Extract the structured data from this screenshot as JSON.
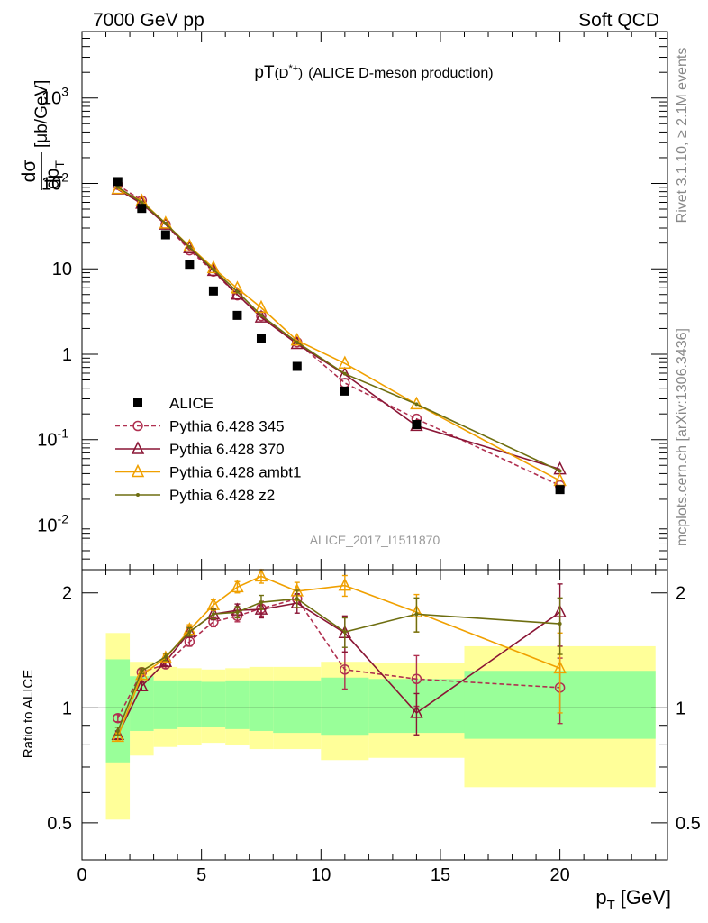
{
  "header": {
    "left": "7000 GeV pp",
    "right": "Soft QCD"
  },
  "side": {
    "rivet": "Rivet 3.1.10, ≥ 2.1M events",
    "site": "mcplots.cern.ch [arXiv:1306.3436]"
  },
  "chart_data": {
    "type": "line",
    "title": "pT(D*+) (ALICE D-meson production)",
    "title_parts": {
      "main": "pT",
      "paren": "(D",
      "sup": "*+",
      "close": ")",
      "rest": "(ALICE D-meson production)"
    },
    "analysis_id": "ALICE_2017_I1511870",
    "ylabel": "dσ/dp_T [μb/GeV]",
    "ylabel_parts": {
      "num": "dσ",
      "den": "dp",
      "sub": "T",
      "unit": "[μb/GeV]"
    },
    "xlabel": "p_T [GeV]",
    "xlabel_parts": {
      "main": "p",
      "sub": "T",
      "unit": "[GeV]"
    },
    "ratio_ylabel": "Ratio to ALICE",
    "x_ticks": [
      "0",
      "5",
      "10",
      "15",
      "20"
    ],
    "y_ticks_main": {
      "exp": [
        "10",
        "10",
        "10",
        "10"
      ],
      "exp_pow": [
        "3",
        "2",
        "-1",
        "-2"
      ],
      "plain": [
        "10",
        "1"
      ]
    },
    "y_ticks_ratio": [
      "0.5",
      "1",
      "2"
    ],
    "xlim": [
      0,
      24.5
    ],
    "ylim_main": [
      0.003,
      6000
    ],
    "ylim_ratio": [
      0.4,
      2.3
    ],
    "y_scale": "log",
    "legend_position": "bottom-left",
    "data": {
      "name": "ALICE",
      "color": "#000000",
      "x": [
        1.5,
        2.5,
        3.5,
        4.5,
        5.5,
        6.5,
        7.5,
        9.0,
        11.0,
        14.0,
        20.0
      ],
      "y": [
        105,
        51,
        25,
        11.3,
        5.5,
        2.85,
        1.52,
        0.72,
        0.37,
        0.15,
        0.026
      ],
      "bins": [
        [
          1,
          2
        ],
        [
          2,
          3
        ],
        [
          3,
          4
        ],
        [
          4,
          5
        ],
        [
          5,
          6
        ],
        [
          6,
          7
        ],
        [
          7,
          8
        ],
        [
          8,
          10
        ],
        [
          10,
          12
        ],
        [
          12,
          16
        ],
        [
          16,
          24
        ]
      ],
      "band_stat": [
        [
          0.72,
          1.34
        ],
        [
          0.87,
          1.21
        ],
        [
          0.88,
          1.18
        ],
        [
          0.89,
          1.18
        ],
        [
          0.89,
          1.17
        ],
        [
          0.88,
          1.18
        ],
        [
          0.87,
          1.18
        ],
        [
          0.86,
          1.18
        ],
        [
          0.85,
          1.2
        ],
        [
          0.86,
          1.19
        ],
        [
          0.83,
          1.25
        ]
      ],
      "band_total": [
        [
          0.51,
          1.57
        ],
        [
          0.75,
          1.32
        ],
        [
          0.79,
          1.28
        ],
        [
          0.8,
          1.27
        ],
        [
          0.81,
          1.26
        ],
        [
          0.8,
          1.27
        ],
        [
          0.78,
          1.28
        ],
        [
          0.78,
          1.28
        ],
        [
          0.73,
          1.32
        ],
        [
          0.74,
          1.31
        ],
        [
          0.62,
          1.45
        ]
      ]
    },
    "series": [
      {
        "name": "Pythia 6.428 345",
        "color": "#b03050",
        "marker": "circle",
        "dashed": true,
        "x": [
          1.5,
          2.5,
          3.5,
          4.5,
          5.5,
          6.5,
          7.5,
          9.0,
          11.0,
          14.0,
          20.0
        ],
        "y": [
          96,
          63,
          33,
          16.5,
          9.3,
          4.9,
          2.8,
          1.38,
          0.46,
          0.175,
          0.029
        ],
        "ratio": [
          0.94,
          1.24,
          1.3,
          1.49,
          1.68,
          1.74,
          1.82,
          1.93,
          1.26,
          1.19,
          1.13
        ],
        "ratio_err": [
          0.02,
          0.02,
          0.03,
          0.04,
          0.05,
          0.06,
          0.08,
          0.1,
          0.14,
          0.18,
          0.22
        ]
      },
      {
        "name": "Pythia 6.428 370",
        "color": "#8a1535",
        "marker": "triangle",
        "dashed": false,
        "x": [
          1.5,
          2.5,
          3.5,
          4.5,
          5.5,
          6.5,
          7.5,
          9.0,
          11.0,
          14.0,
          20.0
        ],
        "y": [
          85,
          58,
          33,
          17.5,
          9.5,
          5.0,
          2.7,
          1.32,
          0.58,
          0.145,
          0.045
        ],
        "ratio": [
          0.85,
          1.14,
          1.32,
          1.58,
          1.76,
          1.8,
          1.81,
          1.88,
          1.57,
          0.97,
          1.78
        ],
        "ratio_err": [
          0.02,
          0.03,
          0.03,
          0.05,
          0.06,
          0.07,
          0.09,
          0.11,
          0.17,
          0.12,
          0.33
        ]
      },
      {
        "name": "Pythia 6.428 ambt1",
        "color": "#f0a000",
        "marker": "triangle",
        "dashed": false,
        "x": [
          1.5,
          2.5,
          3.5,
          4.5,
          5.5,
          6.5,
          7.5,
          9.0,
          11.0,
          14.0,
          20.0
        ],
        "y": [
          86,
          62,
          34,
          18.3,
          10.2,
          5.9,
          3.5,
          1.45,
          0.78,
          0.26,
          0.033
        ],
        "ratio": [
          0.84,
          1.22,
          1.35,
          1.6,
          1.86,
          2.07,
          2.21,
          2.02,
          2.09,
          1.78,
          1.27
        ],
        "ratio_err": [
          0.02,
          0.03,
          0.03,
          0.05,
          0.06,
          0.07,
          0.09,
          0.11,
          0.13,
          0.2,
          0.3
        ]
      },
      {
        "name": "Pythia 6.428 z2",
        "color": "#6e6e10",
        "marker": "dot",
        "dashed": false,
        "x": [
          1.5,
          2.5,
          3.5,
          4.5,
          5.5,
          6.5,
          7.5,
          9.0,
          11.0,
          14.0,
          20.0
        ],
        "y": [
          90,
          60,
          34,
          18.0,
          9.8,
          5.4,
          2.85,
          1.38,
          0.59,
          0.26,
          0.043
        ],
        "ratio": [
          0.87,
          1.25,
          1.36,
          1.58,
          1.76,
          1.78,
          1.89,
          1.93,
          1.58,
          1.76,
          1.66
        ],
        "ratio_err": [
          0.02,
          0.02,
          0.03,
          0.04,
          0.05,
          0.06,
          0.08,
          0.1,
          0.14,
          0.18,
          0.28
        ]
      }
    ]
  }
}
